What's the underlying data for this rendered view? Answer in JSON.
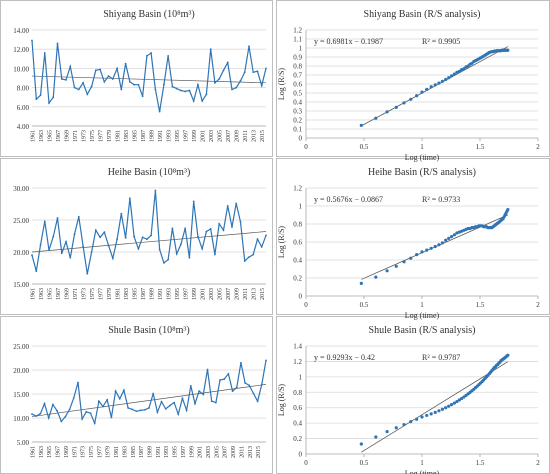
{
  "colors": {
    "series": "#2E75B6",
    "grid": "#D9D9D9",
    "axis": "#A6A6A6",
    "text": "#333333",
    "trend": "#595959",
    "border": "#BFBFBF"
  },
  "year_labels": [
    "1961",
    "1963",
    "1965",
    "1967",
    "1969",
    "1971",
    "1973",
    "1975",
    "1977",
    "1979",
    "1981",
    "1983",
    "1985",
    "1987",
    "1989",
    "1991",
    "1993",
    "1995",
    "1997",
    "1999",
    "2001",
    "2003",
    "2005",
    "2007",
    "2009",
    "2011",
    "2013",
    "2015"
  ],
  "chart_data": [
    {
      "type": "line",
      "title": "Shiyang Basin (10⁸m³)",
      "ylim": [
        4.0,
        14.0
      ],
      "y_ticks": [
        "4.00",
        "6.00",
        "8.00",
        "10.00",
        "12.00",
        "14.00"
      ],
      "trendline": [
        9.2,
        8.5
      ],
      "x_start": 1961,
      "values": [
        12.9,
        6.8,
        7.2,
        11.6,
        6.4,
        7.0,
        12.6,
        8.9,
        8.8,
        10.2,
        8.0,
        7.8,
        8.5,
        7.3,
        8.1,
        9.8,
        9.9,
        8.6,
        9.2,
        8.9,
        10.0,
        7.8,
        10.5,
        8.6,
        8.3,
        8.3,
        7.1,
        11.3,
        11.6,
        7.8,
        5.5,
        8.3,
        11.3,
        8.1,
        7.9,
        7.7,
        7.6,
        7.7,
        6.6,
        8.3,
        6.6,
        7.3,
        12.0,
        8.5,
        8.9,
        9.8,
        10.6,
        7.8,
        8.0,
        8.7,
        9.6,
        12.3,
        9.6,
        9.7,
        8.2,
        10.0
      ]
    },
    {
      "type": "line",
      "title": "Heihe Basin (10⁸m³)",
      "ylim": [
        15.0,
        30.0
      ],
      "y_ticks": [
        "15.00",
        "20.00",
        "25.00",
        "30.00"
      ],
      "trendline": [
        20.0,
        23.2
      ],
      "x_start": 1961,
      "values": [
        19.5,
        17.0,
        21.1,
        24.8,
        20.3,
        22.4,
        25.3,
        19.8,
        21.6,
        19.1,
        22.8,
        25.5,
        20.9,
        16.6,
        20.0,
        23.4,
        22.3,
        23.1,
        21.0,
        19.0,
        22.0,
        26.0,
        22.2,
        28.4,
        22.4,
        20.5,
        22.3,
        22.0,
        22.6,
        29.6,
        20.4,
        18.3,
        18.8,
        23.7,
        19.7,
        21.2,
        23.7,
        19.1,
        27.9,
        22.4,
        20.5,
        23.2,
        23.6,
        19.6,
        24.4,
        23.4,
        27.2,
        23.9,
        27.6,
        24.7,
        18.6,
        19.2,
        19.6,
        22.0,
        20.8,
        22.6
      ]
    },
    {
      "type": "line",
      "title": "Shule Basin (10⁸m³)",
      "ylim": [
        5.0,
        25.0
      ],
      "y_ticks": [
        "5.00",
        "10.00",
        "15.00",
        "20.00",
        "25.00"
      ],
      "trendline": [
        10.3,
        17.0
      ],
      "x_start": 1961,
      "values": [
        10.8,
        10.4,
        10.9,
        13.0,
        10.0,
        12.8,
        11.5,
        9.3,
        10.3,
        11.8,
        14.2,
        17.4,
        9.8,
        11.3,
        11.0,
        8.9,
        13.5,
        12.4,
        13.8,
        10.1,
        15.6,
        14.0,
        15.8,
        12.1,
        11.8,
        11.4,
        11.6,
        11.7,
        12.1,
        15.1,
        11.2,
        13.4,
        11.9,
        12.6,
        13.2,
        10.8,
        14.1,
        11.6,
        16.7,
        13.0,
        15.6,
        14.9,
        20.1,
        13.5,
        13.2,
        17.9,
        18.1,
        19.2,
        15.6,
        16.4,
        21.5,
        17.3,
        16.8,
        15.1,
        13.5,
        17.0,
        22.0
      ]
    },
    {
      "type": "scatter",
      "title": "Shiyang  Basin (R/S analysis)",
      "xlabel": "Log (time)",
      "ylabel": "Log (R/S)",
      "xlim": [
        0,
        2
      ],
      "ylim": [
        0,
        1.2
      ],
      "x_ticks": [
        "0",
        "0.5",
        "1",
        "1.5",
        "2"
      ],
      "y_ticks": [
        "0",
        "0.1",
        "0.2",
        "0.3",
        "0.4",
        "0.5",
        "0.6",
        "0.7",
        "0.8",
        "0.9",
        "1",
        "1.1",
        "1.2"
      ],
      "equation": "y = 0.6981x − 0.1987",
      "r2": "R² = 0.9905",
      "fit": {
        "slope": 0.6981,
        "intercept": -0.1987
      },
      "points": [
        [
          0.477,
          0.14
        ],
        [
          0.602,
          0.22
        ],
        [
          0.699,
          0.29
        ],
        [
          0.778,
          0.34
        ],
        [
          0.845,
          0.39
        ],
        [
          0.903,
          0.43
        ],
        [
          0.954,
          0.47
        ],
        [
          1.0,
          0.51
        ],
        [
          1.041,
          0.54
        ],
        [
          1.079,
          0.57
        ],
        [
          1.114,
          0.59
        ],
        [
          1.146,
          0.61
        ],
        [
          1.176,
          0.63
        ],
        [
          1.204,
          0.65
        ],
        [
          1.23,
          0.67
        ],
        [
          1.255,
          0.69
        ],
        [
          1.279,
          0.71
        ],
        [
          1.301,
          0.73
        ],
        [
          1.322,
          0.74
        ],
        [
          1.342,
          0.76
        ],
        [
          1.362,
          0.77
        ],
        [
          1.38,
          0.79
        ],
        [
          1.398,
          0.8
        ],
        [
          1.415,
          0.82
        ],
        [
          1.431,
          0.83
        ],
        [
          1.447,
          0.85
        ],
        [
          1.462,
          0.86
        ],
        [
          1.477,
          0.87
        ],
        [
          1.491,
          0.88
        ],
        [
          1.505,
          0.89
        ],
        [
          1.519,
          0.9
        ],
        [
          1.531,
          0.91
        ],
        [
          1.544,
          0.92
        ],
        [
          1.556,
          0.93
        ],
        [
          1.568,
          0.94
        ],
        [
          1.58,
          0.95
        ],
        [
          1.591,
          0.955
        ],
        [
          1.602,
          0.96
        ],
        [
          1.613,
          0.96
        ],
        [
          1.623,
          0.965
        ],
        [
          1.633,
          0.965
        ],
        [
          1.643,
          0.97
        ],
        [
          1.653,
          0.97
        ],
        [
          1.663,
          0.97
        ],
        [
          1.672,
          0.97
        ],
        [
          1.681,
          0.97
        ],
        [
          1.69,
          0.975
        ],
        [
          1.699,
          0.975
        ],
        [
          1.708,
          0.975
        ],
        [
          1.716,
          0.975
        ],
        [
          1.724,
          0.975
        ],
        [
          1.732,
          0.975
        ],
        [
          1.74,
          0.975
        ]
      ]
    },
    {
      "type": "scatter",
      "title": "Heihe Basin (R/S analysis)",
      "xlabel": "Log (time)",
      "ylabel": "Log (R/S)",
      "xlim": [
        0,
        2
      ],
      "ylim": [
        0,
        1.2
      ],
      "x_ticks": [
        "0",
        "0.5",
        "1",
        "1.5",
        "2"
      ],
      "y_ticks": [
        "0",
        "0.2",
        "0.4",
        "0.6",
        "0.8",
        "1",
        "1.2"
      ],
      "equation": "y = 0.5676x − 0.0867",
      "r2": "R² = 0.9733",
      "fit": {
        "slope": 0.5676,
        "intercept": -0.0867
      },
      "points": [
        [
          0.477,
          0.14
        ],
        [
          0.602,
          0.21
        ],
        [
          0.699,
          0.28
        ],
        [
          0.778,
          0.33
        ],
        [
          0.845,
          0.38
        ],
        [
          0.903,
          0.42
        ],
        [
          0.954,
          0.46
        ],
        [
          1.0,
          0.49
        ],
        [
          1.041,
          0.51
        ],
        [
          1.079,
          0.53
        ],
        [
          1.114,
          0.55
        ],
        [
          1.146,
          0.57
        ],
        [
          1.176,
          0.59
        ],
        [
          1.204,
          0.62
        ],
        [
          1.23,
          0.64
        ],
        [
          1.255,
          0.66
        ],
        [
          1.279,
          0.68
        ],
        [
          1.301,
          0.7
        ],
        [
          1.322,
          0.71
        ],
        [
          1.342,
          0.72
        ],
        [
          1.362,
          0.73
        ],
        [
          1.38,
          0.74
        ],
        [
          1.398,
          0.75
        ],
        [
          1.415,
          0.75
        ],
        [
          1.431,
          0.76
        ],
        [
          1.447,
          0.76
        ],
        [
          1.462,
          0.77
        ],
        [
          1.477,
          0.77
        ],
        [
          1.491,
          0.78
        ],
        [
          1.505,
          0.78
        ],
        [
          1.519,
          0.78
        ],
        [
          1.531,
          0.77
        ],
        [
          1.544,
          0.77
        ],
        [
          1.556,
          0.77
        ],
        [
          1.568,
          0.76
        ],
        [
          1.58,
          0.76
        ],
        [
          1.591,
          0.76
        ],
        [
          1.602,
          0.76
        ],
        [
          1.613,
          0.77
        ],
        [
          1.623,
          0.78
        ],
        [
          1.633,
          0.79
        ],
        [
          1.643,
          0.8
        ],
        [
          1.653,
          0.81
        ],
        [
          1.663,
          0.82
        ],
        [
          1.672,
          0.83
        ],
        [
          1.681,
          0.84
        ],
        [
          1.69,
          0.85
        ],
        [
          1.699,
          0.86
        ],
        [
          1.708,
          0.88
        ],
        [
          1.716,
          0.9
        ],
        [
          1.724,
          0.92
        ],
        [
          1.732,
          0.94
        ],
        [
          1.74,
          0.96
        ]
      ]
    },
    {
      "type": "scatter",
      "title": "Shule Basin (R/S analysis)",
      "xlabel": "Log (time)",
      "ylabel": "Log (R/S)",
      "xlim": [
        0,
        2
      ],
      "ylim": [
        0,
        1.4
      ],
      "x_ticks": [
        "0",
        "0.5",
        "1",
        "1.5",
        "2"
      ],
      "y_ticks": [
        "0",
        "0.2",
        "0.4",
        "0.6",
        "0.8",
        "1",
        "1.2",
        "1.4"
      ],
      "equation": "y = 0.9293x − 0.42",
      "r2": "R² = 0.9787",
      "fit": {
        "slope": 0.9293,
        "intercept": -0.42
      },
      "points": [
        [
          0.477,
          0.13
        ],
        [
          0.602,
          0.22
        ],
        [
          0.699,
          0.29
        ],
        [
          0.778,
          0.34
        ],
        [
          0.845,
          0.38
        ],
        [
          0.903,
          0.42
        ],
        [
          0.954,
          0.45
        ],
        [
          1.0,
          0.48
        ],
        [
          1.041,
          0.5
        ],
        [
          1.079,
          0.52
        ],
        [
          1.114,
          0.54
        ],
        [
          1.146,
          0.56
        ],
        [
          1.176,
          0.58
        ],
        [
          1.204,
          0.6
        ],
        [
          1.23,
          0.62
        ],
        [
          1.255,
          0.64
        ],
        [
          1.279,
          0.66
        ],
        [
          1.301,
          0.68
        ],
        [
          1.322,
          0.7
        ],
        [
          1.342,
          0.72
        ],
        [
          1.362,
          0.74
        ],
        [
          1.38,
          0.76
        ],
        [
          1.398,
          0.78
        ],
        [
          1.415,
          0.8
        ],
        [
          1.431,
          0.82
        ],
        [
          1.447,
          0.84
        ],
        [
          1.462,
          0.86
        ],
        [
          1.477,
          0.88
        ],
        [
          1.491,
          0.9
        ],
        [
          1.505,
          0.92
        ],
        [
          1.519,
          0.94
        ],
        [
          1.531,
          0.96
        ],
        [
          1.544,
          0.98
        ],
        [
          1.556,
          1.0
        ],
        [
          1.568,
          1.02
        ],
        [
          1.58,
          1.04
        ],
        [
          1.591,
          1.06
        ],
        [
          1.602,
          1.08
        ],
        [
          1.613,
          1.1
        ],
        [
          1.623,
          1.12
        ],
        [
          1.633,
          1.13
        ],
        [
          1.643,
          1.15
        ],
        [
          1.653,
          1.16
        ],
        [
          1.663,
          1.18
        ],
        [
          1.672,
          1.19
        ],
        [
          1.681,
          1.21
        ],
        [
          1.69,
          1.22
        ],
        [
          1.699,
          1.23
        ],
        [
          1.708,
          1.24
        ],
        [
          1.716,
          1.25
        ],
        [
          1.724,
          1.26
        ],
        [
          1.732,
          1.27
        ],
        [
          1.74,
          1.28
        ]
      ]
    }
  ]
}
